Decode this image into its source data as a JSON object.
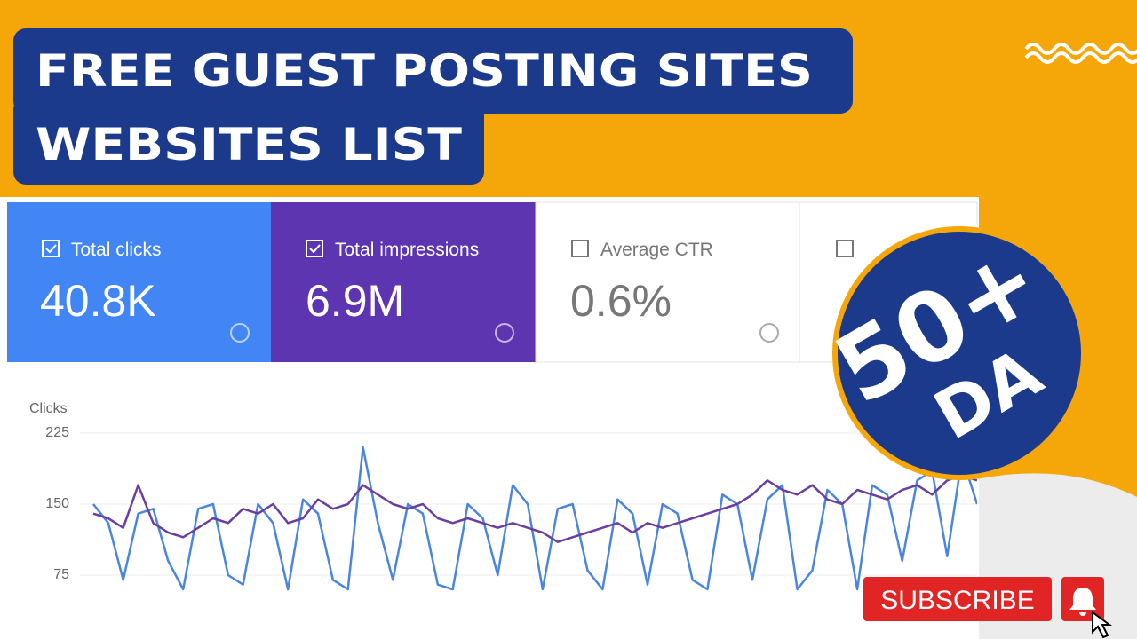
{
  "header": {
    "line1": "FREE GUEST POSTING SITES",
    "line2": "WEBSITES LIST"
  },
  "cards": [
    {
      "label": "Total clicks",
      "value": "40.8K"
    },
    {
      "label": "Total impressions",
      "value": "6.9M"
    },
    {
      "label": "Average CTR",
      "value": "0.6%"
    }
  ],
  "badge": {
    "line1": "50+",
    "line2": "DA"
  },
  "button": {
    "label": "SUBSCRIBE"
  },
  "chart_data": {
    "type": "line",
    "y_label": "Clicks",
    "ylim": [
      0,
      225
    ],
    "yticks": [
      75,
      150,
      225
    ],
    "grid": true,
    "series": [
      {
        "color": "#4a86e0",
        "values": [
          150,
          130,
          70,
          140,
          145,
          90,
          60,
          145,
          150,
          75,
          65,
          150,
          130,
          60,
          155,
          140,
          70,
          60,
          210,
          130,
          70,
          150,
          140,
          65,
          60,
          150,
          135,
          75,
          170,
          150,
          60,
          145,
          150,
          80,
          60,
          155,
          140,
          65,
          150,
          140,
          70,
          60,
          160,
          150,
          70,
          155,
          170,
          60,
          80,
          165,
          150,
          60,
          170,
          160,
          90,
          175,
          185,
          95,
          200,
          150
        ]
      },
      {
        "color": "#6a3fa0",
        "values": [
          140,
          135,
          125,
          170,
          130,
          120,
          115,
          125,
          135,
          130,
          145,
          140,
          150,
          130,
          135,
          155,
          145,
          150,
          170,
          160,
          150,
          145,
          150,
          135,
          130,
          135,
          130,
          125,
          130,
          125,
          120,
          110,
          115,
          120,
          125,
          130,
          120,
          130,
          125,
          130,
          135,
          140,
          145,
          150,
          160,
          175,
          165,
          160,
          170,
          155,
          150,
          165,
          160,
          155,
          165,
          170,
          160,
          175,
          180,
          175
        ]
      }
    ]
  }
}
